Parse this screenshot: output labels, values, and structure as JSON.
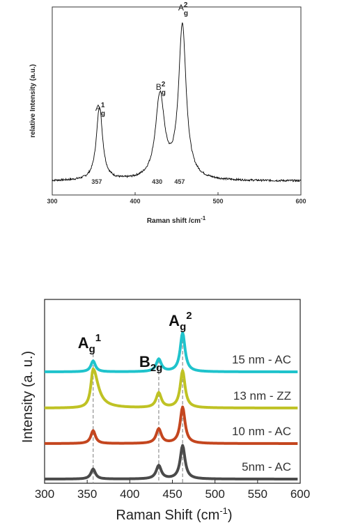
{
  "chart_data": [
    {
      "type": "line",
      "xlabel": "Raman shift /cm",
      "xlabel_sup": "-1",
      "ylabel": "relative Intensity (a.u.)",
      "xlim": [
        300,
        600
      ],
      "xticks": [
        "300",
        "400",
        "500",
        "600"
      ],
      "series": [
        {
          "peaks": [
            {
              "x": 357,
              "height": 0.44,
              "width": 4.5
            },
            {
              "x": 430,
              "height": 0.5,
              "width": 6.5
            },
            {
              "x": 457,
              "height": 0.92,
              "width": 5.5
            }
          ],
          "color": "#000000"
        }
      ],
      "peak_labels": [
        {
          "x": 357,
          "main": "A",
          "sub": "g",
          "sup": "1"
        },
        {
          "x": 430,
          "main": "B",
          "sub": "g",
          "sup": "2"
        },
        {
          "x": 457,
          "main": "A",
          "sub": "g",
          "sup": "2"
        }
      ],
      "value_labels": [
        "357",
        "430",
        "457"
      ]
    },
    {
      "type": "line",
      "xlabel": "Raman Shift (cm",
      "xlabel_sup": "-1",
      "xlabel_end": ")",
      "ylabel": "Intensity (a. u.)",
      "xlim": [
        300,
        600
      ],
      "xticks": [
        "300",
        "350",
        "400",
        "450",
        "500",
        "550",
        "600"
      ],
      "series": [
        {
          "name": "15 nm - AC",
          "color": "#1fc3cc",
          "peaks": [
            {
              "x": 357,
              "height": 0.28
            },
            {
              "x": 434,
              "height": 0.32
            },
            {
              "x": 462,
              "height": 1.0
            }
          ]
        },
        {
          "name": "13 nm - ZZ",
          "color": "#bfc224",
          "peaks": [
            {
              "x": 357,
              "height": 1.0
            },
            {
              "x": 434,
              "height": 0.38
            },
            {
              "x": 462,
              "height": 0.95
            }
          ]
        },
        {
          "name": "10 nm - AC",
          "color": "#c4461f",
          "peaks": [
            {
              "x": 357,
              "height": 0.32
            },
            {
              "x": 434,
              "height": 0.36
            },
            {
              "x": 462,
              "height": 0.9
            }
          ]
        },
        {
          "name": "5nm - AC",
          "color": "#4a4a4a",
          "peaks": [
            {
              "x": 357,
              "height": 0.3
            },
            {
              "x": 434,
              "height": 0.4
            },
            {
              "x": 462,
              "height": 1.0
            }
          ]
        }
      ],
      "peak_labels": [
        {
          "x": 357,
          "main": "A",
          "sub": "g",
          "sup": "1"
        },
        {
          "x": 434,
          "main": "B",
          "sub": "2g",
          "sup": ""
        },
        {
          "x": 462,
          "main": "A",
          "sub": "g",
          "sup": "2"
        }
      ]
    }
  ]
}
